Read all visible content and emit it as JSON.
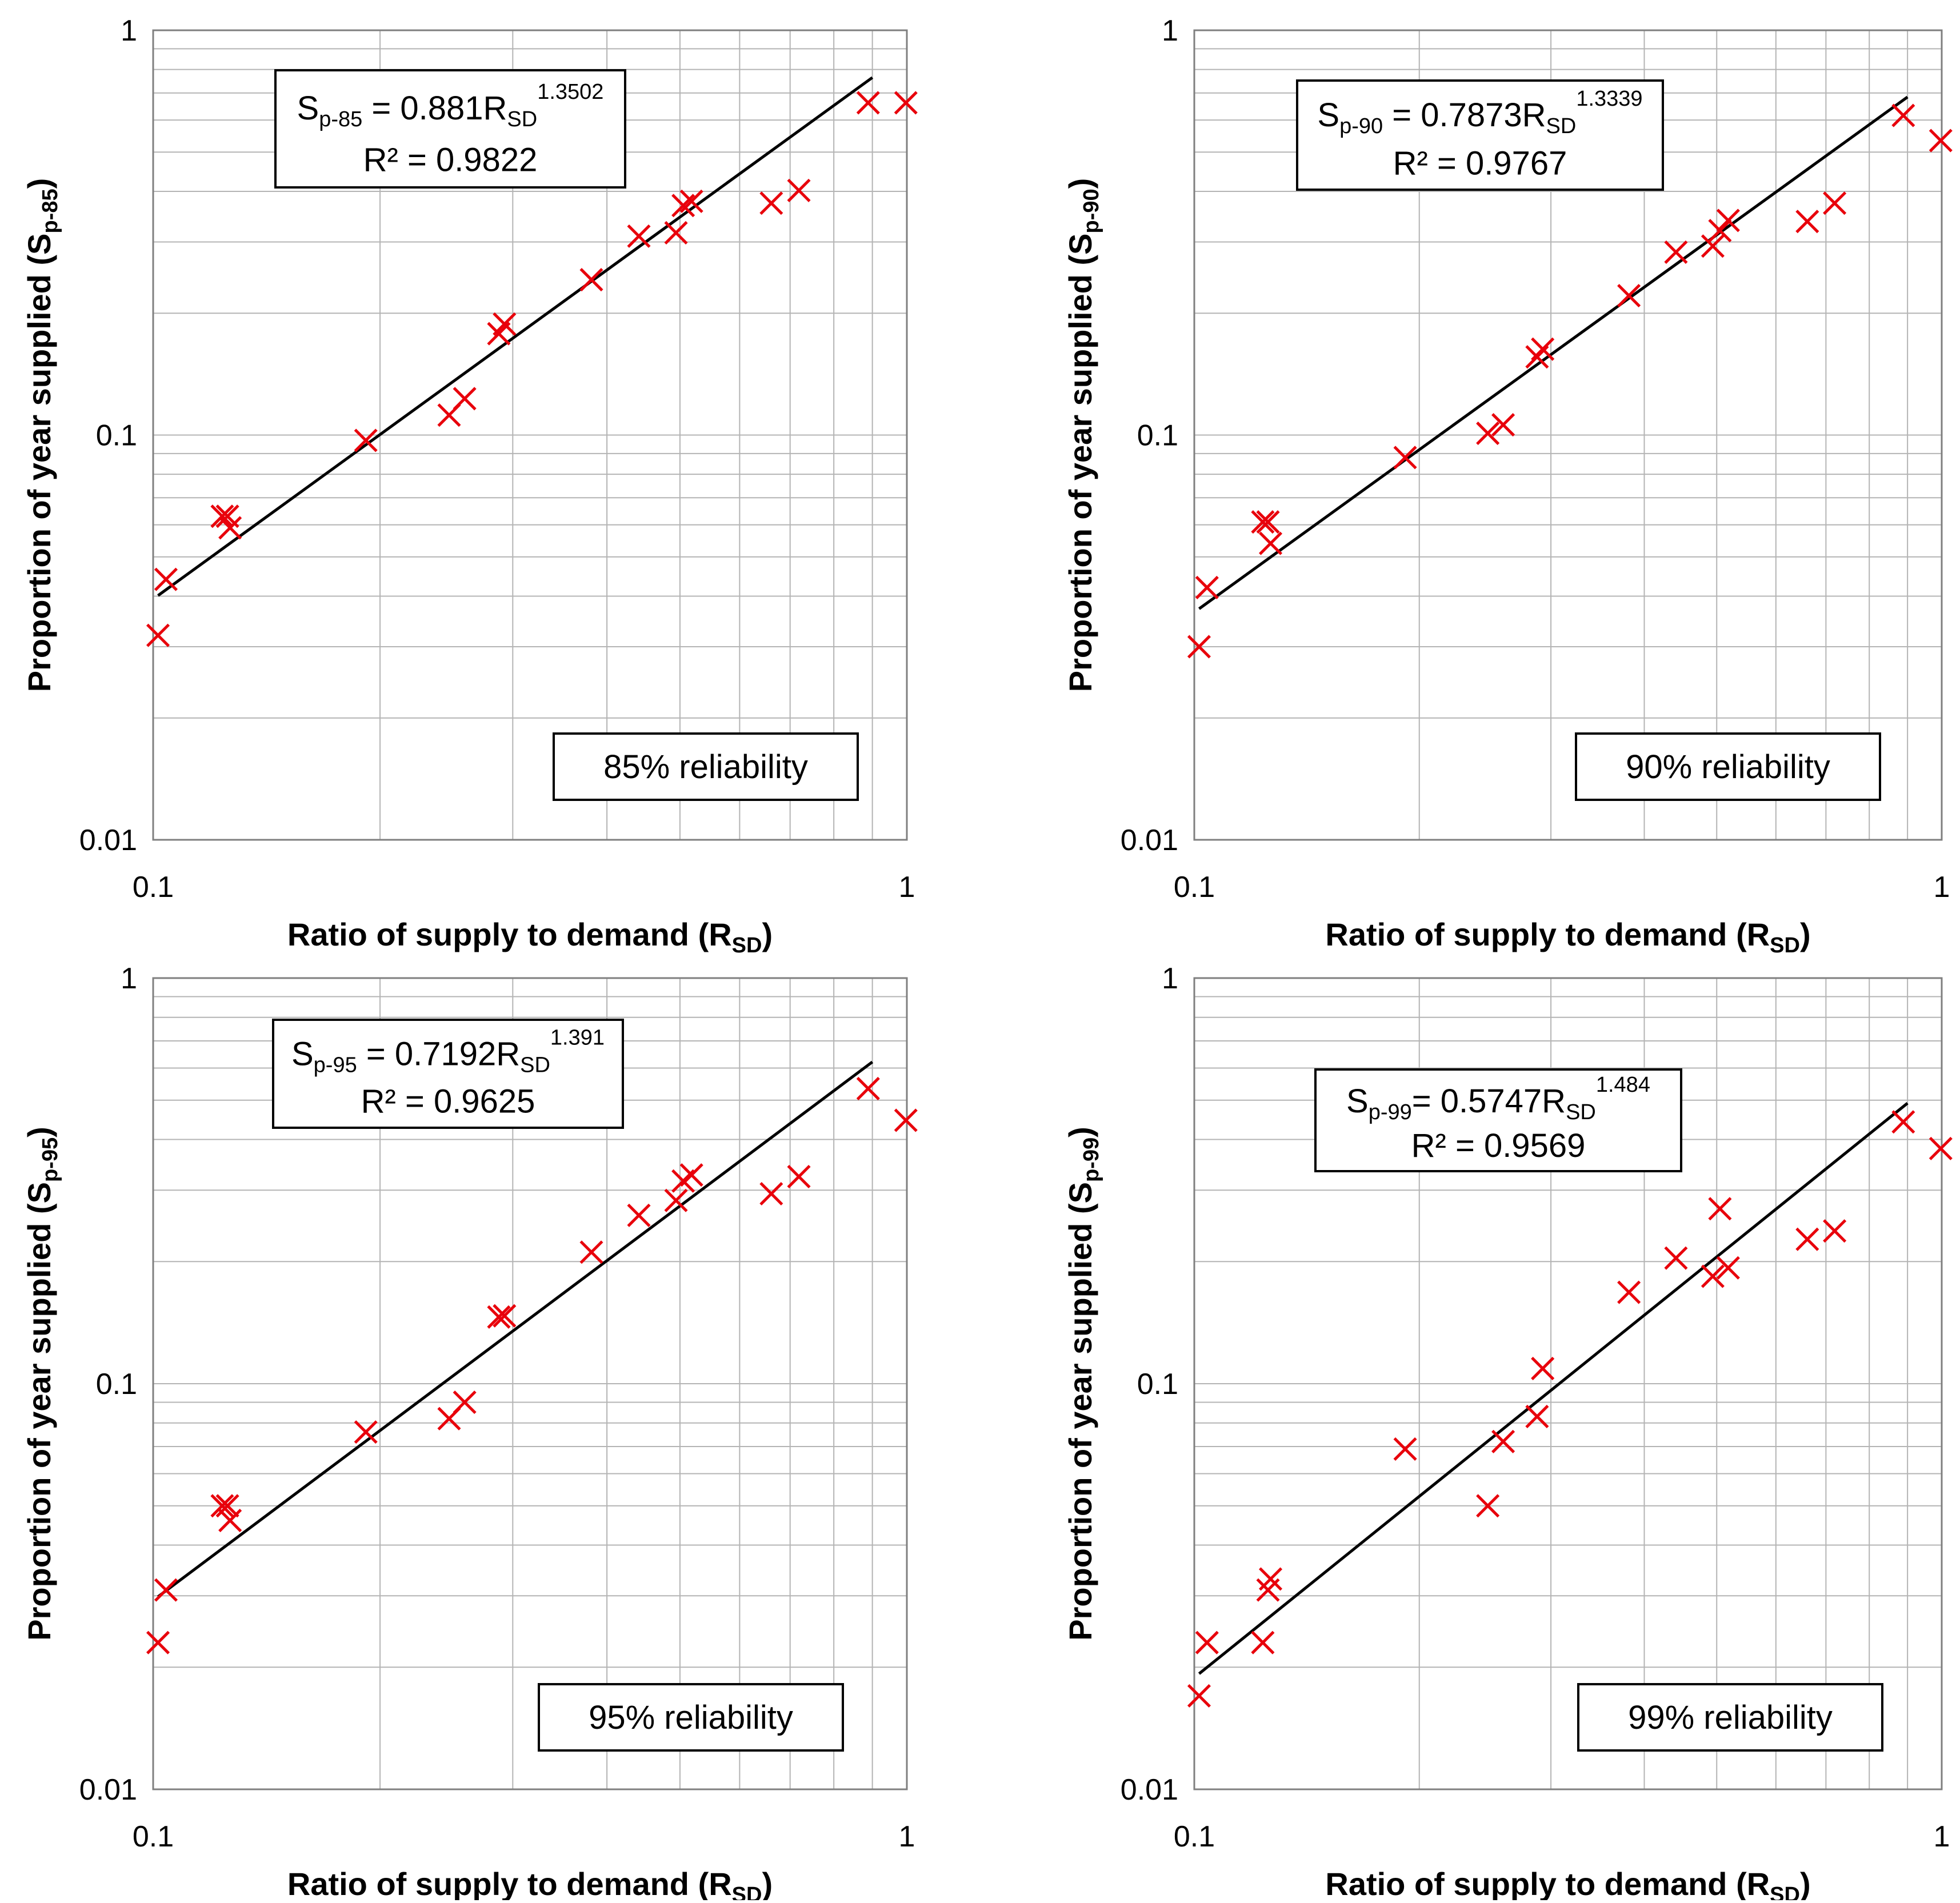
{
  "chart_data": [
    {
      "type": "scatter",
      "title": "",
      "xlabel": "Ratio of supply to demand (R",
      "xlabel_sub": "SD",
      "xlabel_end": ")",
      "ylabel": "Proportion of year supplied (S",
      "ylabel_sub": "p-85",
      "ylabel_end": ")",
      "xlim": [
        0.1,
        1
      ],
      "ylim": [
        0.01,
        1
      ],
      "xscale": "log",
      "yscale": "log",
      "x_ticks": [
        "0.1",
        "1"
      ],
      "y_ticks": [
        "0.01",
        "0.1",
        "1"
      ],
      "equation": {
        "lhs": "S",
        "lhs_sub": "p-85",
        "eq": " = 0.881R",
        "sub": "SD",
        "exp": "1.3502",
        "r2": "R² = 0.9822"
      },
      "trend": {
        "coef": 0.881,
        "exp": 1.3502,
        "x_range": [
          0.1015,
          0.9
        ]
      },
      "reliability": "85% reliability",
      "points": [
        [
          0.1015,
          0.032
        ],
        [
          0.104,
          0.044
        ],
        [
          0.1235,
          0.063
        ],
        [
          0.1255,
          0.063
        ],
        [
          0.1265,
          0.059
        ],
        [
          0.1915,
          0.097
        ],
        [
          0.247,
          0.112
        ],
        [
          0.259,
          0.123
        ],
        [
          0.2875,
          0.178
        ],
        [
          0.2925,
          0.188
        ],
        [
          0.3815,
          0.242
        ],
        [
          0.441,
          0.31
        ],
        [
          0.494,
          0.316
        ],
        [
          0.505,
          0.369
        ],
        [
          0.518,
          0.378
        ],
        [
          0.661,
          0.374
        ],
        [
          0.719,
          0.402
        ],
        [
          0.8885,
          0.662
        ],
        [
          0.997,
          0.662
        ]
      ]
    },
    {
      "type": "scatter",
      "title": "",
      "xlabel": "Ratio of supply to demand (R",
      "xlabel_sub": "SD",
      "xlabel_end": ")",
      "ylabel": "Proportion of year supplied (S",
      "ylabel_sub": "p-90",
      "ylabel_end": ")",
      "xlim": [
        0.1,
        1
      ],
      "ylim": [
        0.01,
        1
      ],
      "xscale": "log",
      "yscale": "log",
      "x_ticks": [
        "0.1",
        "1"
      ],
      "y_ticks": [
        "0.01",
        "0.1",
        "1"
      ],
      "equation": {
        "lhs": "S",
        "lhs_sub": "p-90",
        "eq": " = 0.7873R",
        "sub": "SD",
        "exp": "1.3339",
        "r2": "R² = 0.9767"
      },
      "trend": {
        "coef": 0.7873,
        "exp": 1.3339,
        "x_range": [
          0.1015,
          0.9
        ]
      },
      "reliability": "90% reliability",
      "points": [
        [
          0.1015,
          0.03
        ],
        [
          0.104,
          0.042
        ],
        [
          0.1235,
          0.061
        ],
        [
          0.1255,
          0.061
        ],
        [
          0.1265,
          0.054
        ],
        [
          0.1915,
          0.088
        ],
        [
          0.247,
          0.101
        ],
        [
          0.259,
          0.106
        ],
        [
          0.2875,
          0.156
        ],
        [
          0.2925,
          0.163
        ],
        [
          0.3815,
          0.221
        ],
        [
          0.441,
          0.283
        ],
        [
          0.494,
          0.293
        ],
        [
          0.505,
          0.32
        ],
        [
          0.518,
          0.339
        ],
        [
          0.661,
          0.337
        ],
        [
          0.719,
          0.374
        ],
        [
          0.8885,
          0.616
        ],
        [
          0.997,
          0.534
        ]
      ]
    },
    {
      "type": "scatter",
      "title": "",
      "xlabel": "Ratio of supply to demand (R",
      "xlabel_sub": "SD",
      "xlabel_end": ")",
      "ylabel": "Proportion of year supplied (S",
      "ylabel_sub": "p-95",
      "ylabel_end": ")",
      "xlim": [
        0.1,
        1
      ],
      "ylim": [
        0.01,
        1
      ],
      "xscale": "log",
      "yscale": "log",
      "x_ticks": [
        "0.1",
        "1"
      ],
      "y_ticks": [
        "0.01",
        "0.1",
        "1"
      ],
      "equation": {
        "lhs": "S",
        "lhs_sub": "p-95",
        "eq": " = 0.7192R",
        "sub": "SD",
        "exp": "1.391",
        "r2": "R² = 0.9625"
      },
      "trend": {
        "coef": 0.7192,
        "exp": 1.391,
        "x_range": [
          0.1015,
          0.9
        ]
      },
      "reliability": "95% reliability",
      "points": [
        [
          0.1015,
          0.023
        ],
        [
          0.104,
          0.031
        ],
        [
          0.1235,
          0.05
        ],
        [
          0.1255,
          0.05
        ],
        [
          0.1265,
          0.046
        ],
        [
          0.1915,
          0.076
        ],
        [
          0.247,
          0.082
        ],
        [
          0.259,
          0.09
        ],
        [
          0.2875,
          0.146
        ],
        [
          0.2925,
          0.147
        ],
        [
          0.3815,
          0.211
        ],
        [
          0.441,
          0.26
        ],
        [
          0.494,
          0.283
        ],
        [
          0.505,
          0.316
        ],
        [
          0.518,
          0.327
        ],
        [
          0.661,
          0.294
        ],
        [
          0.719,
          0.324
        ],
        [
          0.8885,
          0.534
        ],
        [
          0.997,
          0.446
        ]
      ]
    },
    {
      "type": "scatter",
      "title": "",
      "xlabel": "Ratio of supply to demand (R",
      "xlabel_sub": "SD",
      "xlabel_end": ")",
      "ylabel": "Proportion of year supplied (S",
      "ylabel_sub": "p-99",
      "ylabel_end": ")",
      "xlim": [
        0.1,
        1
      ],
      "ylim": [
        0.01,
        1
      ],
      "xscale": "log",
      "yscale": "log",
      "x_ticks": [
        "0.1",
        "1"
      ],
      "y_ticks": [
        "0.01",
        "0.1",
        "1"
      ],
      "equation": {
        "lhs": "S",
        "lhs_sub": "p-99",
        "eq": "= 0.5747R",
        "sub": "SD",
        "exp": "1.484",
        "r2": "R² = 0.9569"
      },
      "trend": {
        "coef": 0.5747,
        "exp": 1.484,
        "x_range": [
          0.1015,
          0.9
        ]
      },
      "reliability": "99% reliability",
      "points": [
        [
          0.1015,
          0.017
        ],
        [
          0.104,
          0.023
        ],
        [
          0.1235,
          0.023
        ],
        [
          0.1255,
          0.031
        ],
        [
          0.1265,
          0.033
        ],
        [
          0.1915,
          0.069
        ],
        [
          0.247,
          0.05
        ],
        [
          0.259,
          0.072
        ],
        [
          0.2875,
          0.083
        ],
        [
          0.2925,
          0.109
        ],
        [
          0.3815,
          0.168
        ],
        [
          0.441,
          0.204
        ],
        [
          0.494,
          0.184
        ],
        [
          0.505,
          0.27
        ],
        [
          0.518,
          0.193
        ],
        [
          0.661,
          0.227
        ],
        [
          0.719,
          0.238
        ],
        [
          0.8885,
          0.442
        ],
        [
          0.997,
          0.38
        ]
      ]
    }
  ]
}
